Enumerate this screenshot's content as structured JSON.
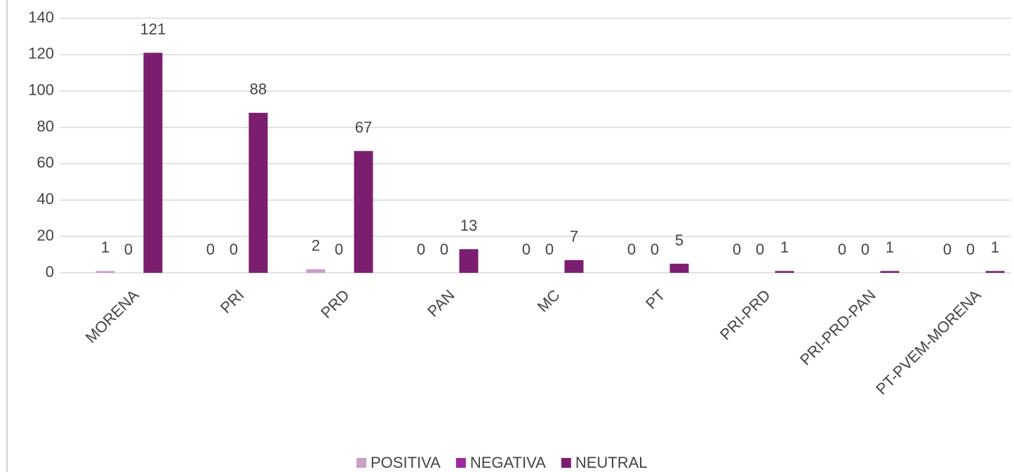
{
  "chart_data": {
    "type": "bar",
    "categories": [
      "MORENA",
      "PRI",
      "PRD",
      "PAN",
      "MC",
      "PT",
      "PRI-PRD",
      "PRI-PRD-PAN",
      "PT-PVEM-MORENA"
    ],
    "series": [
      {
        "name": "POSITIVA",
        "color": "#c9a0c8",
        "values": [
          1,
          0,
          2,
          0,
          0,
          0,
          0,
          0,
          0
        ]
      },
      {
        "name": "NEGATIVA",
        "color": "#9b2a9b",
        "values": [
          0,
          0,
          0,
          0,
          0,
          0,
          0,
          0,
          0
        ]
      },
      {
        "name": "NEUTRAL",
        "color": "#7b1e6f",
        "values": [
          121,
          88,
          67,
          13,
          7,
          5,
          1,
          1,
          1
        ]
      }
    ],
    "ylim": [
      0,
      140
    ],
    "yticks": [
      0,
      20,
      40,
      60,
      80,
      100,
      120,
      140
    ],
    "grid": true,
    "legend": "bottom"
  }
}
